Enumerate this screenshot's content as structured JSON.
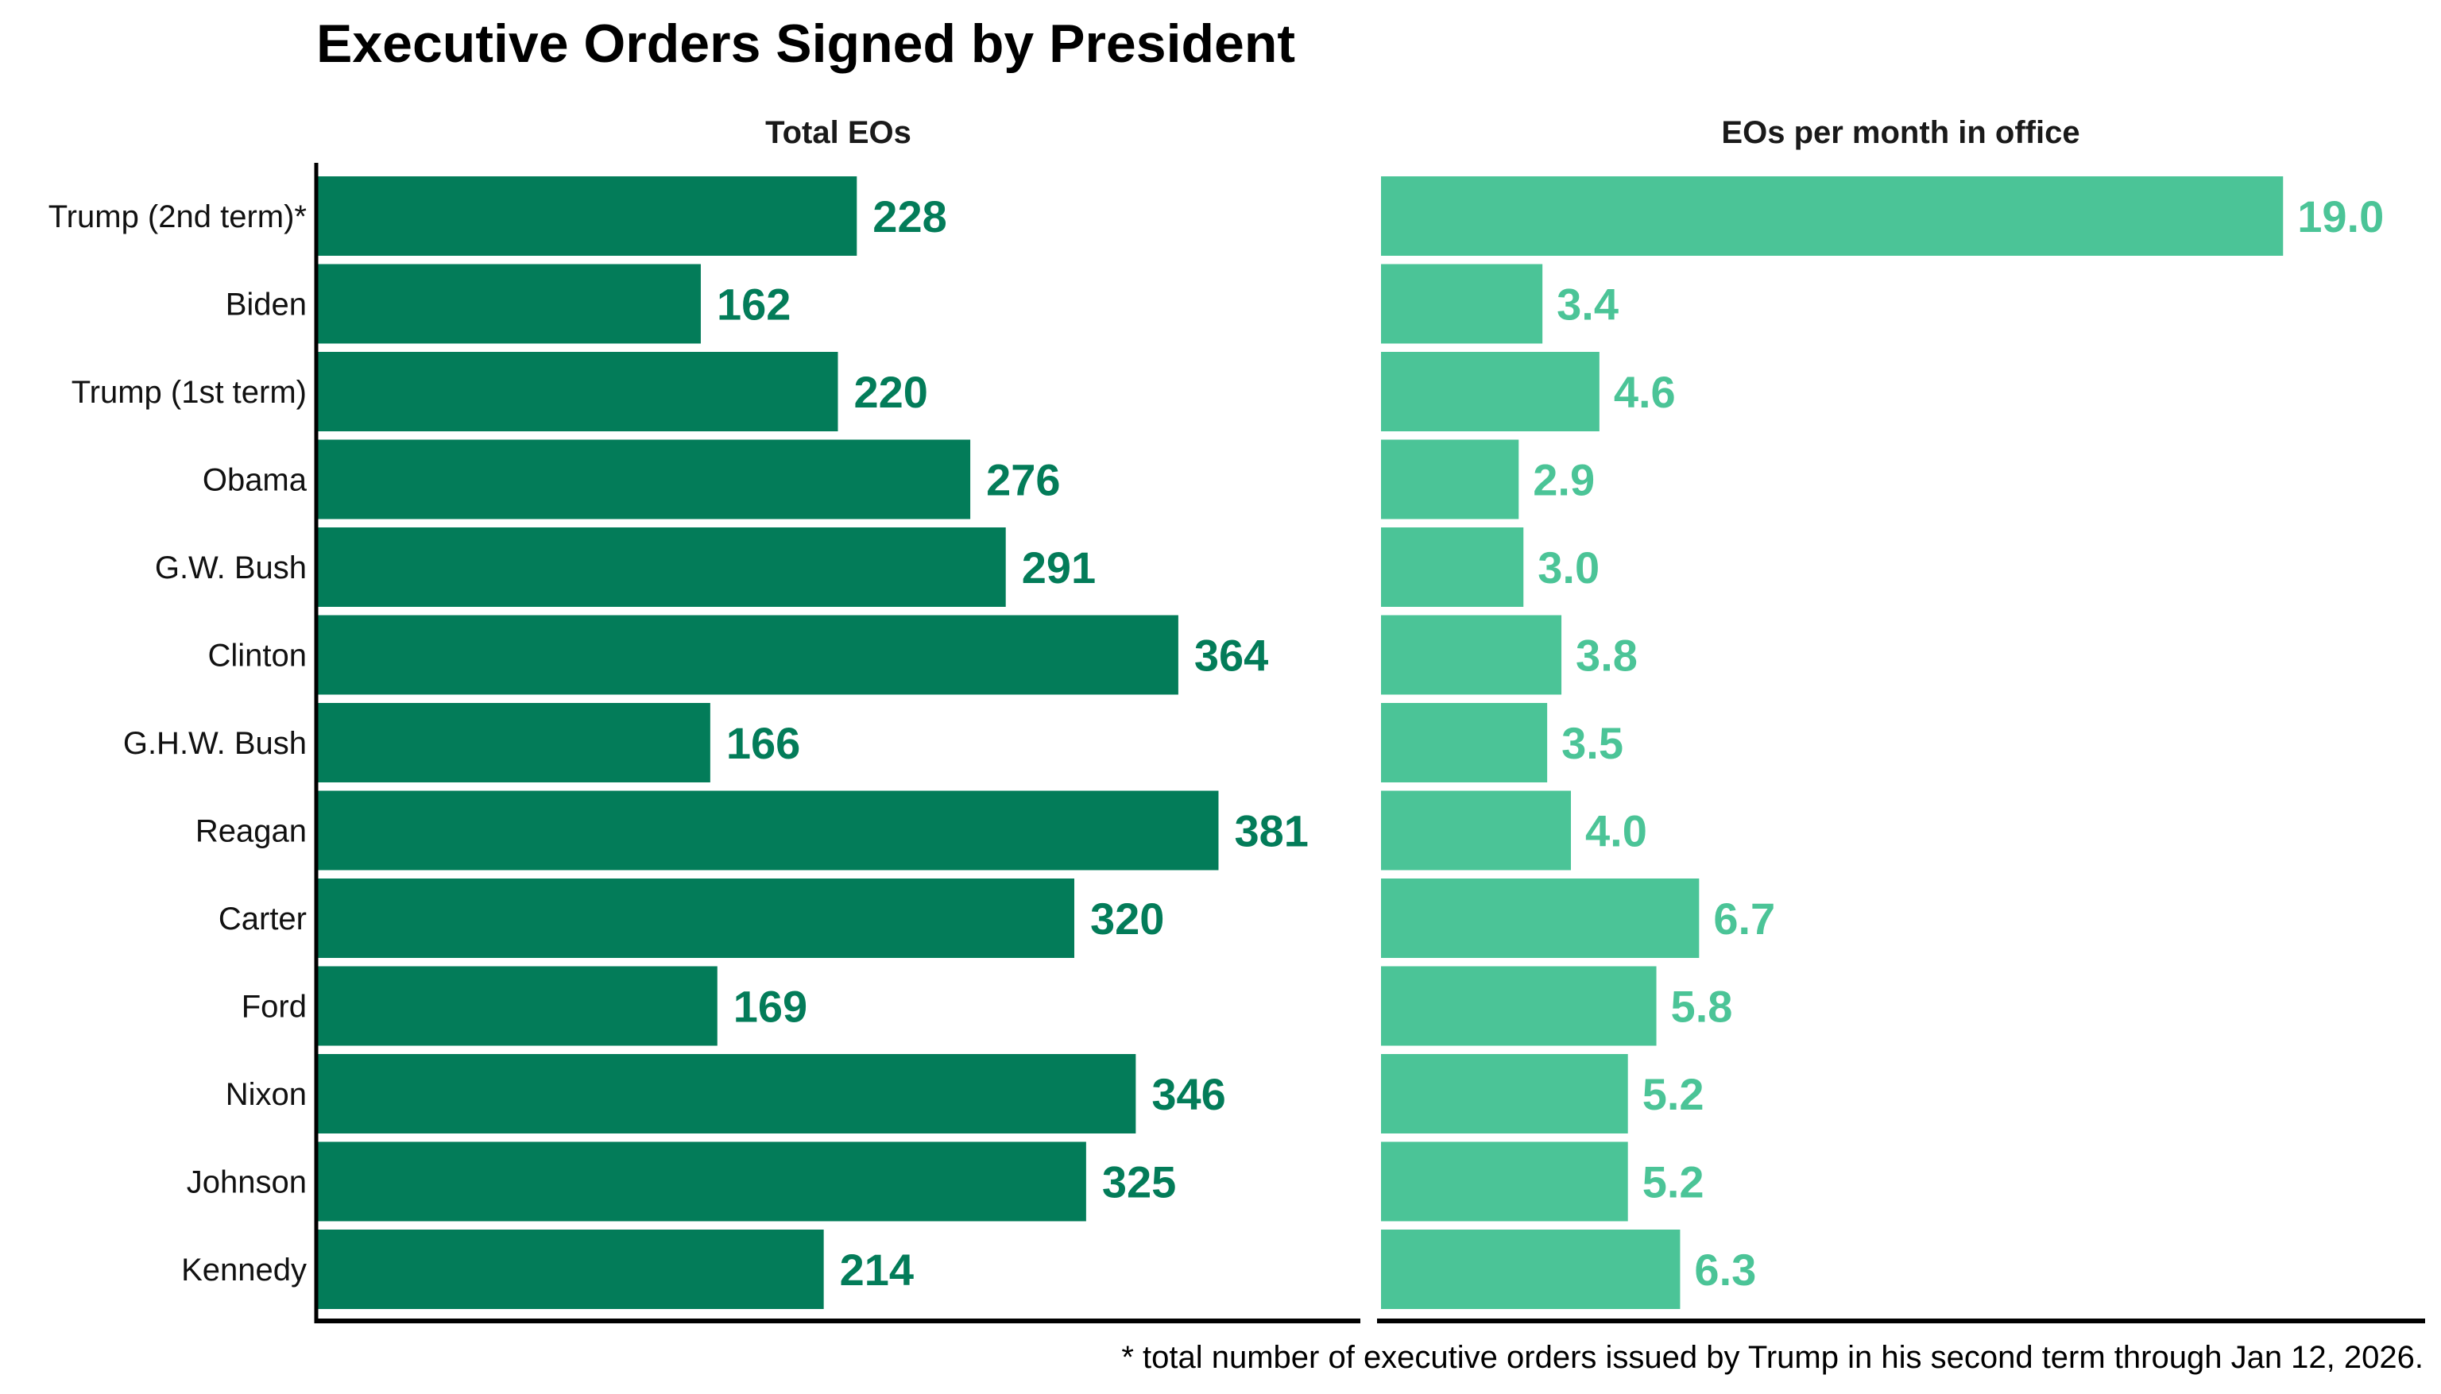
{
  "chart_data": [
    {
      "type": "bar",
      "orientation": "horizontal",
      "title": "Executive Orders Signed by President",
      "subtitle": "Total EOs",
      "xlabel": "",
      "ylabel": "",
      "xlim": [
        0,
        440
      ],
      "grid": false,
      "categories": [
        "Trump (2nd term)*",
        "Biden",
        "Trump (1st term)",
        "Obama",
        "G.W. Bush",
        "Clinton",
        "G.H.W. Bush",
        "Reagan",
        "Carter",
        "Ford",
        "Nixon",
        "Johnson",
        "Kennedy"
      ],
      "values": [
        228,
        162,
        220,
        276,
        291,
        364,
        166,
        381,
        320,
        169,
        346,
        325,
        214
      ],
      "value_labels": [
        "228",
        "162",
        "220",
        "276",
        "291",
        "364",
        "166",
        "381",
        "320",
        "169",
        "346",
        "325",
        "214"
      ],
      "color": "#037c59"
    },
    {
      "type": "bar",
      "orientation": "horizontal",
      "subtitle": "EOs per month in office",
      "xlabel": "",
      "ylabel": "",
      "xlim": [
        0,
        22
      ],
      "grid": false,
      "categories": [
        "Trump (2nd term)*",
        "Biden",
        "Trump (1st term)",
        "Obama",
        "G.W. Bush",
        "Clinton",
        "G.H.W. Bush",
        "Reagan",
        "Carter",
        "Ford",
        "Nixon",
        "Johnson",
        "Kennedy"
      ],
      "values": [
        19.0,
        3.4,
        4.6,
        2.9,
        3.0,
        3.8,
        3.5,
        4.0,
        6.7,
        5.8,
        5.2,
        5.2,
        6.3
      ],
      "value_labels": [
        "19.0",
        "3.4",
        "4.6",
        "2.9",
        "3.0",
        "3.8",
        "3.5",
        "4.0",
        "6.7",
        "5.8",
        "5.2",
        "5.2",
        "6.3"
      ],
      "color": "#4bc497"
    }
  ],
  "header": {
    "title": "Executive Orders Signed by President"
  },
  "panels": {
    "left_title": "Total EOs",
    "right_title": "EOs per month in office"
  },
  "footnote": "* total number of executive orders issued by Trump in his second term through Jan 12, 2026.",
  "colors": {
    "left_bar": "#037c59",
    "right_bar": "#4bc497",
    "axis": "#000000"
  }
}
